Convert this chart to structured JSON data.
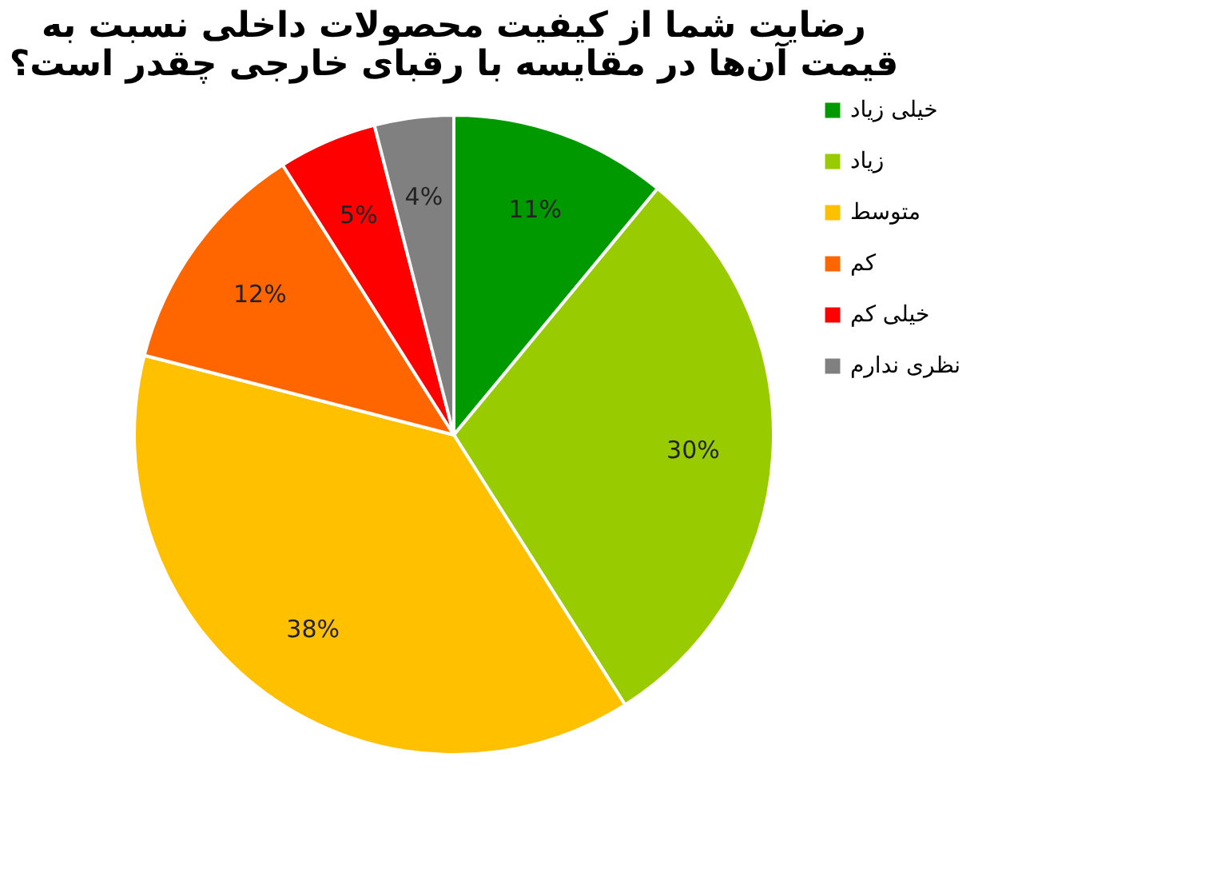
{
  "chart_data": {
    "type": "pie",
    "title": "رضایت شما از کیفیت محصولات داخلی نسبت به\nقیمت آن‌ها در مقایسه با رقبای خارجی چقدر است؟",
    "categories": [
      "خیلی زیاد",
      "زیاد",
      "متوسط",
      "کم",
      "خیلی کم",
      "نظری ندارم"
    ],
    "values": [
      11,
      30,
      38,
      12,
      5,
      4
    ],
    "value_labels": [
      "11%",
      "30%",
      "38%",
      "12%",
      "5%",
      "4%"
    ],
    "colors": [
      "#009900",
      "#99cc00",
      "#ffc000",
      "#ff6600",
      "#ff0000",
      "#808080"
    ],
    "legend": "right"
  }
}
